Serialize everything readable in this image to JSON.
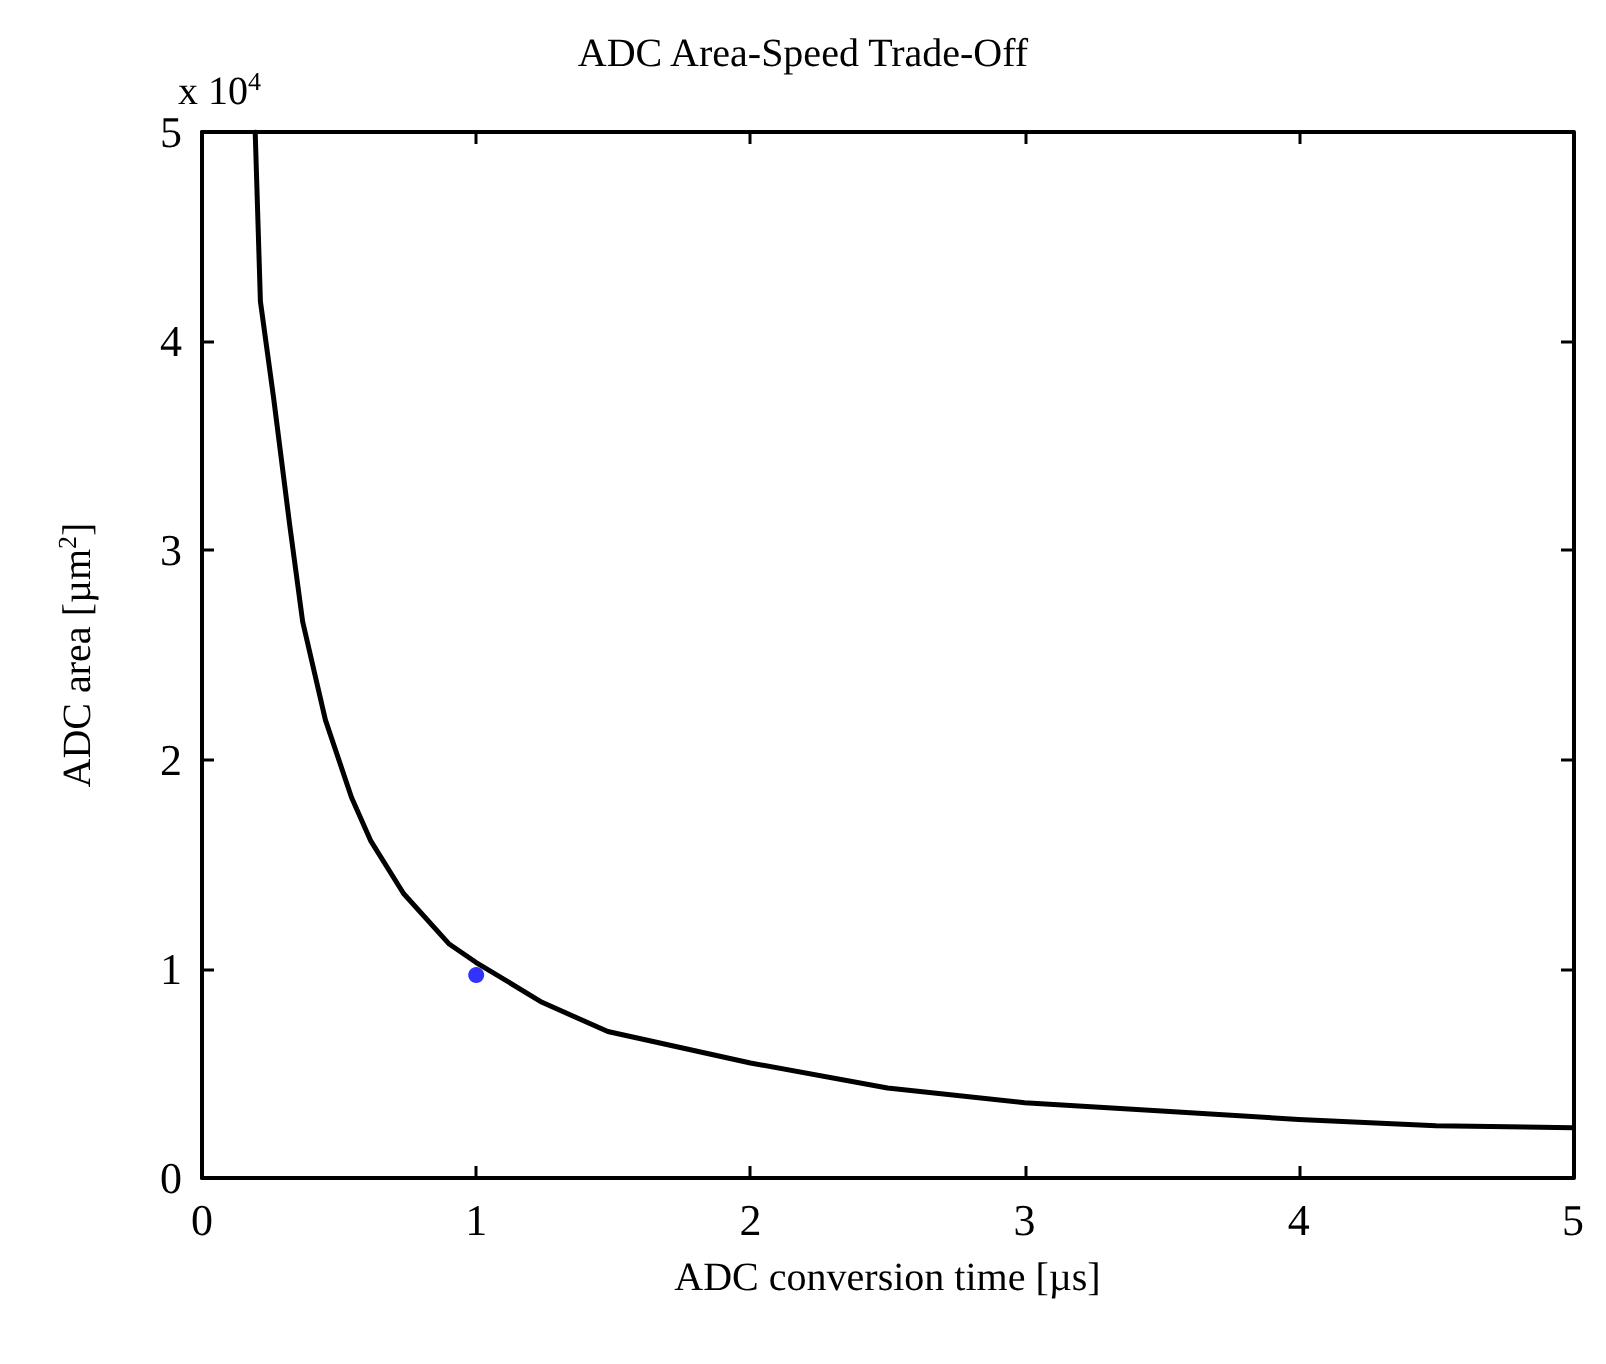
{
  "chart_data": {
    "type": "line",
    "title": "ADC Area-Speed Trade-Off",
    "xlabel": "ADC conversion time [µs]",
    "ylabel": "ADC area [µm$^{2}$]",
    "annotations": [
      "x 10$^{4}$"
    ],
    "xlim": [
      0,
      5
    ],
    "xticks": [
      0,
      1,
      2,
      3,
      4,
      5
    ],
    "ylim": [
      0,
      5
    ],
    "yticks": [
      0,
      1,
      2,
      3,
      4,
      5
    ],
    "grid": false,
    "marker": "none",
    "line_style": "solid",
    "series": [
      {
        "color": "#000000",
        "x": [
          0.194,
          0.213,
          0.261,
          0.32,
          0.367,
          0.45,
          0.545,
          0.616,
          0.735,
          0.9,
          1.0,
          1.24,
          1.48,
          2.0,
          2.5,
          3.0,
          3.5,
          4.0,
          4.5,
          5.0
        ],
        "values": [
          5.0,
          4.19,
          3.73,
          3.12,
          2.66,
          2.19,
          1.82,
          1.61,
          1.36,
          1.12,
          1.03,
          0.84,
          0.7,
          0.55,
          0.43,
          0.36,
          0.32,
          0.28,
          0.25,
          0.24
        ]
      },
      {
        "type": "scatter",
        "color": "#0000ff",
        "marker": "circle",
        "x": [
          1.0
        ],
        "values": [
          0.97
        ]
      }
    ]
  }
}
